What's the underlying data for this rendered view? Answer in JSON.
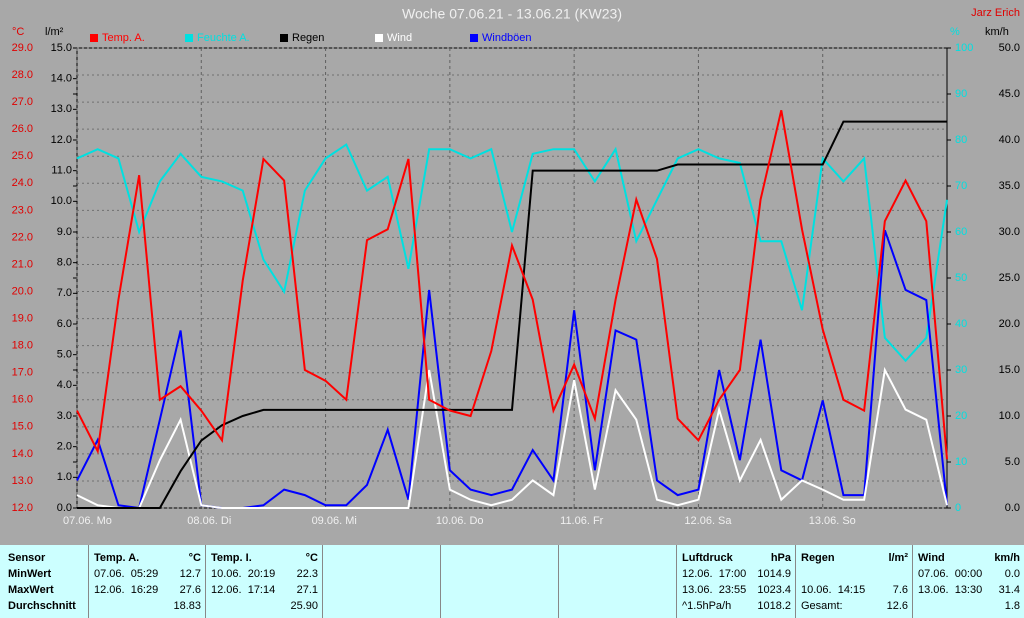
{
  "chart_data": {
    "type": "line",
    "title": "Woche 07.06.21 - 13.06.21 (KW23)",
    "author": "Jarz Erich",
    "x": [
      0,
      4,
      8,
      12,
      16,
      20,
      24,
      28,
      32,
      36,
      40,
      44,
      48,
      52,
      56,
      60,
      64,
      68,
      72,
      76,
      80,
      84,
      88,
      92,
      96,
      100,
      104,
      108,
      112,
      116,
      120,
      124,
      128,
      132,
      136,
      140,
      144,
      148,
      152,
      156,
      160,
      164,
      168
    ],
    "xlim": [
      0,
      168
    ],
    "xticks": [
      {
        "value": 0,
        "label": "07.06.  Mo"
      },
      {
        "value": 24,
        "label": "08.06.  Di"
      },
      {
        "value": 48,
        "label": "09.06.  Mi"
      },
      {
        "value": 72,
        "label": "10.06.  Do"
      },
      {
        "value": 96,
        "label": "11.06.  Fr"
      },
      {
        "value": 120,
        "label": "12.06.  Sa"
      },
      {
        "value": 144,
        "label": "13.06.  So"
      }
    ],
    "ylabel": "°C",
    "ylim": [
      12,
      29
    ],
    "yticks": [
      {
        "value": 12,
        "label": "12.0"
      },
      {
        "value": 13,
        "label": "13.0"
      },
      {
        "value": 14,
        "label": "14.0"
      },
      {
        "value": 15,
        "label": "15.0"
      },
      {
        "value": 16,
        "label": "16.0"
      },
      {
        "value": 17,
        "label": "17.0"
      },
      {
        "value": 18,
        "label": "18.0"
      },
      {
        "value": 19,
        "label": "19.0"
      },
      {
        "value": 20,
        "label": "20.0"
      },
      {
        "value": 21,
        "label": "21.0"
      },
      {
        "value": 22,
        "label": "22.0"
      },
      {
        "value": 23,
        "label": "23.0"
      },
      {
        "value": 24,
        "label": "24.0"
      },
      {
        "value": 25,
        "label": "25.0"
      },
      {
        "value": 26,
        "label": "26.0"
      },
      {
        "value": 27,
        "label": "27.0"
      },
      {
        "value": 28,
        "label": "28.0"
      },
      {
        "value": 29,
        "label": "29.0"
      }
    ],
    "y2label": "l/m²",
    "y2lim": [
      0,
      15
    ],
    "y2ticks": [
      {
        "value": 0,
        "label": "0.0"
      },
      {
        "value": 1,
        "label": "1.0"
      },
      {
        "value": 2,
        "label": "2.0"
      },
      {
        "value": 3,
        "label": "3.0"
      },
      {
        "value": 4,
        "label": "4.0"
      },
      {
        "value": 5,
        "label": "5.0"
      },
      {
        "value": 6,
        "label": "6.0"
      },
      {
        "value": 7,
        "label": "7.0"
      },
      {
        "value": 8,
        "label": "8.0"
      },
      {
        "value": 9,
        "label": "9.0"
      },
      {
        "value": 10,
        "label": "10.0"
      },
      {
        "value": 11,
        "label": "11.0"
      },
      {
        "value": 12,
        "label": "12.0"
      },
      {
        "value": 13,
        "label": "13.0"
      },
      {
        "value": 14,
        "label": "14.0"
      },
      {
        "value": 15,
        "label": "15.0"
      }
    ],
    "y3label": "%",
    "y3lim": [
      0,
      100
    ],
    "y3ticks": [
      0,
      10,
      20,
      30,
      40,
      50,
      60,
      70,
      80,
      90,
      100
    ],
    "y4label": "km/h",
    "y4lim": [
      0,
      50
    ],
    "y4ticks": [
      {
        "value": 0,
        "label": "0.0"
      },
      {
        "value": 5,
        "label": "5.0"
      },
      {
        "value": 10,
        "label": "10.0"
      },
      {
        "value": 15,
        "label": "15.0"
      },
      {
        "value": 20,
        "label": "20.0"
      },
      {
        "value": 25,
        "label": "25.0"
      },
      {
        "value": 30,
        "label": "30.0"
      },
      {
        "value": 35,
        "label": "35.0"
      },
      {
        "value": 40,
        "label": "40.0"
      },
      {
        "value": 45,
        "label": "45.0"
      },
      {
        "value": 50,
        "label": "50.0"
      }
    ],
    "grid": true,
    "series": [
      {
        "name": "Temp. A.",
        "color": "#ff0000",
        "axis": "y",
        "values": [
          15.6,
          14.1,
          19.7,
          24.3,
          16.0,
          16.5,
          15.6,
          14.5,
          20.4,
          24.9,
          24.1,
          17.1,
          16.7,
          16.0,
          21.9,
          22.3,
          24.9,
          16.0,
          15.6,
          15.4,
          17.8,
          21.7,
          19.7,
          15.6,
          17.3,
          15.3,
          19.7,
          23.4,
          21.2,
          15.3,
          14.5,
          16.0,
          17.1,
          23.4,
          26.7,
          22.3,
          18.6,
          16.0,
          15.6,
          22.6,
          24.1,
          22.6,
          13.8
        ]
      },
      {
        "name": "Feuchte A.",
        "color": "#00e0e0",
        "axis": "y3",
        "values": [
          76,
          78,
          76,
          60,
          71,
          77,
          72,
          71,
          69,
          54,
          47,
          69,
          76,
          79,
          69,
          72,
          52,
          78,
          78,
          76,
          78,
          60,
          77,
          78,
          78,
          71,
          78,
          58,
          67,
          76,
          78,
          76,
          75,
          58,
          58,
          43,
          76,
          71,
          76,
          37,
          32,
          37,
          67
        ]
      },
      {
        "name": "Regen",
        "color": "#000000",
        "axis": "y2",
        "values": [
          0,
          0,
          0,
          0,
          0,
          1.2,
          2.2,
          2.7,
          3.0,
          3.2,
          3.2,
          3.2,
          3.2,
          3.2,
          3.2,
          3.2,
          3.2,
          3.2,
          3.2,
          3.2,
          3.2,
          3.2,
          11.0,
          11.0,
          11.0,
          11.0,
          11.0,
          11.0,
          11.0,
          11.2,
          11.2,
          11.2,
          11.2,
          11.2,
          11.2,
          11.2,
          11.2,
          12.6,
          12.6,
          12.6,
          12.6,
          12.6,
          12.6
        ]
      },
      {
        "name": "Wind",
        "color": "#ffffff",
        "axis": "y4",
        "values": [
          1.4,
          0.3,
          0,
          0,
          5.2,
          9.6,
          0.3,
          0,
          0,
          0,
          0,
          0,
          0,
          0,
          0,
          0,
          0,
          15.0,
          2.0,
          0.9,
          0.3,
          0.9,
          3.0,
          1.4,
          13.9,
          2.0,
          12.8,
          9.6,
          0.9,
          0.3,
          0.9,
          10.7,
          3.0,
          7.4,
          0.9,
          3.0,
          2.0,
          0.9,
          0.9,
          15.0,
          10.7,
          9.6,
          0.3
        ]
      },
      {
        "name": "Windböen",
        "color": "#0000ff",
        "axis": "y4",
        "values": [
          3.0,
          7.4,
          0.3,
          0,
          9.6,
          19.3,
          0.3,
          0,
          0,
          0.3,
          2.0,
          1.4,
          0.3,
          0.3,
          2.5,
          8.5,
          0.9,
          23.7,
          4.1,
          2.0,
          1.4,
          2.0,
          6.3,
          3.0,
          21.5,
          4.1,
          19.3,
          18.3,
          3.0,
          1.4,
          2.0,
          15.0,
          5.2,
          18.3,
          4.1,
          3.0,
          11.7,
          1.4,
          1.4,
          30.2,
          23.7,
          22.6,
          0.3
        ]
      }
    ]
  },
  "stats": {
    "sensor": {
      "title": "Sensor",
      "rows": [
        "MinWert",
        "MaxWert",
        "Durchschnitt"
      ]
    },
    "groups": [
      {
        "title": "Temp. A.",
        "unit": "°C",
        "rows": [
          {
            "when": "07.06.  05:29",
            "value": "12.7"
          },
          {
            "when": "12.06.  16:29",
            "value": "27.6"
          },
          {
            "value": "18.83"
          }
        ]
      },
      {
        "title": "Temp. I.",
        "unit": "°C",
        "rows": [
          {
            "when": "10.06.  20:19",
            "value": "22.3"
          },
          {
            "when": "12.06.  17:14",
            "value": "27.1"
          },
          {
            "value": "25.90"
          }
        ]
      },
      {
        "title": "Luftdruck",
        "unit": "hPa",
        "rows": [
          {
            "when": "12.06.  17:00",
            "value": "1014.9"
          },
          {
            "when": "13.06.  23:55",
            "value": "1023.4"
          },
          {
            "when": "^1.5hPa/h",
            "value": "1018.2"
          }
        ]
      },
      {
        "title": "Regen",
        "unit": "l/m²",
        "rows": [
          null,
          {
            "when": "10.06.  14:15",
            "value": "7.6"
          },
          {
            "when": "Gesamt:",
            "value": "12.6"
          }
        ]
      },
      {
        "title": "Wind",
        "unit": "km/h",
        "rows": [
          {
            "when": "07.06.  00:00",
            "value": "0.0"
          },
          {
            "when": "13.06.  13:30",
            "value": "31.4"
          },
          {
            "value": "1.8"
          }
        ]
      }
    ]
  }
}
